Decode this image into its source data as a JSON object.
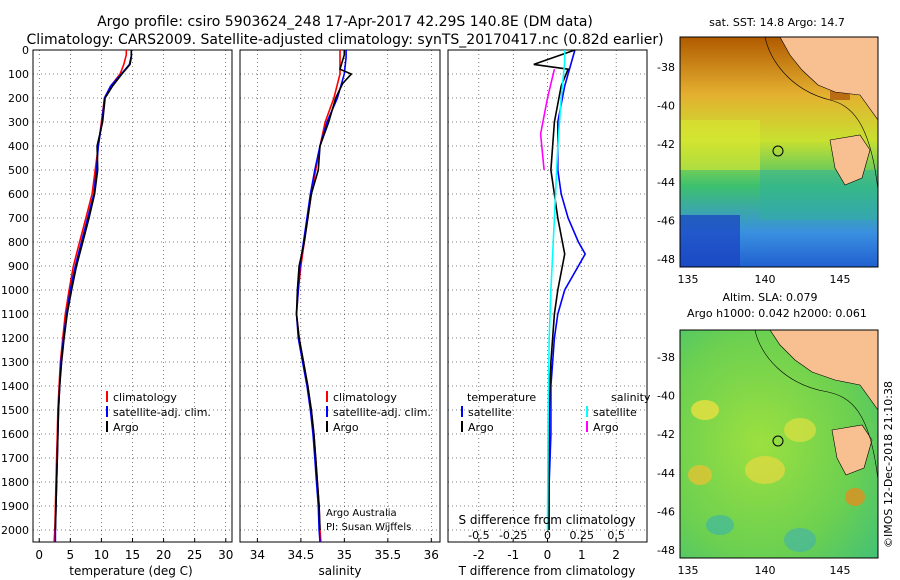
{
  "header": {
    "line1": "Argo profile: csiro 5903624_248 17-Apr-2017 42.29S 140.8E (DM data)",
    "line2": "Climatology: CARS2009. Satellite-adjusted climatology: synTS_20170417.nc (0.82d earlier)"
  },
  "colors": {
    "climatology": "#ff0000",
    "satellite": "#0000ff",
    "argo": "#000000",
    "sat_salinity": "#00ffff",
    "argo_salinity": "#ff00ff",
    "land": "#f8c090"
  },
  "chart_data": [
    {
      "type": "line",
      "name": "temperature",
      "xlabel": "temperature (deg C)",
      "xlim": [
        -1,
        31
      ],
      "ylim": [
        2050,
        0
      ],
      "xticks": [
        0,
        5,
        10,
        15,
        20,
        25,
        30
      ],
      "yticks": [
        0,
        100,
        200,
        300,
        400,
        500,
        600,
        700,
        800,
        900,
        1000,
        1100,
        1200,
        1300,
        1400,
        1500,
        1600,
        1700,
        1800,
        1900,
        2000
      ],
      "legend": {
        "climatology": "climatology",
        "satellite": "satellite-adj. clim.",
        "argo": "Argo"
      },
      "series": [
        {
          "name": "climatology",
          "color": "#ff0000",
          "points": [
            [
              14.0,
              0
            ],
            [
              14.0,
              20
            ],
            [
              13.6,
              60
            ],
            [
              13.0,
              100
            ],
            [
              11.5,
              150
            ],
            [
              10.5,
              200
            ],
            [
              10.0,
              300
            ],
            [
              9.5,
              400
            ],
            [
              9.0,
              500
            ],
            [
              8.5,
              600
            ],
            [
              7.5,
              700
            ],
            [
              6.5,
              800
            ],
            [
              5.5,
              900
            ],
            [
              4.8,
              1000
            ],
            [
              4.2,
              1100
            ],
            [
              3.8,
              1200
            ],
            [
              3.4,
              1300
            ],
            [
              3.2,
              1400
            ],
            [
              3.0,
              1500
            ],
            [
              2.9,
              1600
            ],
            [
              2.8,
              1700
            ],
            [
              2.7,
              1800
            ],
            [
              2.6,
              1900
            ],
            [
              2.5,
              2000
            ],
            [
              2.4,
              2050
            ]
          ]
        },
        {
          "name": "satellite-adj. clim.",
          "color": "#0000ff",
          "points": [
            [
              14.8,
              0
            ],
            [
              14.8,
              25
            ],
            [
              14.5,
              60
            ],
            [
              13.2,
              100
            ],
            [
              11.5,
              150
            ],
            [
              10.5,
              200
            ],
            [
              10.1,
              300
            ],
            [
              9.5,
              400
            ],
            [
              9.2,
              500
            ],
            [
              8.8,
              600
            ],
            [
              7.8,
              700
            ],
            [
              6.8,
              800
            ],
            [
              5.8,
              900
            ],
            [
              5.0,
              1000
            ],
            [
              4.4,
              1100
            ],
            [
              3.9,
              1200
            ],
            [
              3.5,
              1300
            ],
            [
              3.3,
              1400
            ],
            [
              3.1,
              1500
            ],
            [
              3.0,
              1600
            ],
            [
              2.9,
              1700
            ],
            [
              2.8,
              1800
            ],
            [
              2.7,
              1900
            ],
            [
              2.6,
              2000
            ],
            [
              2.6,
              2050
            ]
          ]
        },
        {
          "name": "Argo",
          "color": "#000000",
          "points": [
            [
              14.8,
              0
            ],
            [
              14.8,
              30
            ],
            [
              14.6,
              60
            ],
            [
              13.3,
              100
            ],
            [
              11.8,
              150
            ],
            [
              10.6,
              200
            ],
            [
              10.2,
              300
            ],
            [
              9.3,
              400
            ],
            [
              9.4,
              500
            ],
            [
              8.9,
              600
            ],
            [
              8.0,
              700
            ],
            [
              7.0,
              800
            ],
            [
              6.0,
              900
            ],
            [
              5.2,
              1000
            ],
            [
              4.5,
              1100
            ],
            [
              4.0,
              1200
            ],
            [
              3.6,
              1300
            ],
            [
              3.3,
              1400
            ],
            [
              3.1,
              1500
            ],
            [
              3.0,
              1600
            ],
            [
              2.9,
              1700
            ],
            [
              2.8,
              1800
            ],
            [
              2.7,
              1900
            ],
            [
              2.6,
              2000
            ]
          ]
        }
      ]
    },
    {
      "type": "line",
      "name": "salinity",
      "xlabel": "salinity",
      "xlim": [
        33.8,
        36.1
      ],
      "ylim": [
        2050,
        0
      ],
      "xticks": [
        34,
        34.5,
        35,
        35.5,
        36
      ],
      "legend": {
        "climatology": "climatology",
        "satellite": "satellite-adj. clim.",
        "argo": "Argo"
      },
      "series": [
        {
          "name": "climatology",
          "color": "#ff0000",
          "points": [
            [
              34.95,
              0
            ],
            [
              34.95,
              30
            ],
            [
              34.95,
              100
            ],
            [
              34.88,
              200
            ],
            [
              34.78,
              300
            ],
            [
              34.72,
              400
            ],
            [
              34.67,
              500
            ],
            [
              34.62,
              600
            ],
            [
              34.58,
              700
            ],
            [
              34.54,
              800
            ],
            [
              34.5,
              900
            ],
            [
              34.47,
              1000
            ],
            [
              34.45,
              1100
            ],
            [
              34.48,
              1200
            ],
            [
              34.53,
              1300
            ],
            [
              34.58,
              1400
            ],
            [
              34.62,
              1500
            ],
            [
              34.65,
              1600
            ],
            [
              34.67,
              1700
            ],
            [
              34.69,
              1800
            ],
            [
              34.71,
              1900
            ],
            [
              34.72,
              2000
            ],
            [
              34.73,
              2050
            ]
          ]
        },
        {
          "name": "satellite-adj. clim.",
          "color": "#0000ff",
          "points": [
            [
              35.02,
              0
            ],
            [
              35.02,
              30
            ],
            [
              35.0,
              100
            ],
            [
              34.92,
              200
            ],
            [
              34.8,
              300
            ],
            [
              34.72,
              400
            ],
            [
              34.66,
              500
            ],
            [
              34.61,
              600
            ],
            [
              34.57,
              700
            ],
            [
              34.53,
              800
            ],
            [
              34.49,
              900
            ],
            [
              34.47,
              1000
            ],
            [
              34.45,
              1100
            ],
            [
              34.47,
              1200
            ],
            [
              34.52,
              1300
            ],
            [
              34.57,
              1400
            ],
            [
              34.61,
              1500
            ],
            [
              34.64,
              1600
            ],
            [
              34.66,
              1700
            ],
            [
              34.68,
              1800
            ],
            [
              34.7,
              1900
            ],
            [
              34.71,
              2000
            ],
            [
              34.72,
              2050
            ]
          ]
        },
        {
          "name": "Argo",
          "color": "#000000",
          "points": [
            [
              35.0,
              0
            ],
            [
              35.0,
              20
            ],
            [
              34.95,
              80
            ],
            [
              35.08,
              100
            ],
            [
              34.98,
              140
            ],
            [
              34.9,
              200
            ],
            [
              34.82,
              300
            ],
            [
              34.72,
              400
            ],
            [
              34.7,
              500
            ],
            [
              34.62,
              600
            ],
            [
              34.58,
              700
            ],
            [
              34.54,
              800
            ],
            [
              34.48,
              900
            ],
            [
              34.46,
              1000
            ],
            [
              34.45,
              1100
            ],
            [
              34.48,
              1200
            ],
            [
              34.53,
              1300
            ],
            [
              34.58,
              1400
            ],
            [
              34.62,
              1500
            ],
            [
              34.65,
              1600
            ],
            [
              34.67,
              1700
            ],
            [
              34.69,
              1800
            ],
            [
              34.71,
              1900
            ],
            [
              34.72,
              2000
            ]
          ]
        }
      ],
      "annotations": [
        "Argo Australia",
        "PI: Susan Wijffels"
      ]
    },
    {
      "type": "line",
      "name": "differences",
      "xlabel": "T difference from climatology",
      "xlabel2": "S difference from climatology",
      "xlim": [
        -2.9,
        2.9
      ],
      "ylim": [
        2050,
        0
      ],
      "xticks": [
        -2,
        -1,
        0,
        1,
        2
      ],
      "xticks2": [
        -0.5,
        -0.25,
        0,
        0.25,
        0.5
      ],
      "legend_temperature": {
        "title": "temperature",
        "satellite": "satellite",
        "argo": "Argo"
      },
      "legend_salinity": {
        "title": "salinity",
        "satellite": "satellite",
        "argo": "Argo"
      },
      "series": [
        {
          "name": "temperature satellite",
          "color": "#0000ff",
          "points": [
            [
              0.8,
              0
            ],
            [
              0.7,
              50
            ],
            [
              0.5,
              150
            ],
            [
              0.3,
              300
            ],
            [
              0.3,
              500
            ],
            [
              0.4,
              600
            ],
            [
              0.6,
              700
            ],
            [
              0.9,
              800
            ],
            [
              1.1,
              850
            ],
            [
              0.9,
              900
            ],
            [
              0.5,
              1000
            ],
            [
              0.3,
              1100
            ],
            [
              0.2,
              1200
            ],
            [
              0.1,
              1400
            ],
            [
              0.1,
              1600
            ],
            [
              0.05,
              1800
            ],
            [
              0.05,
              2000
            ]
          ]
        },
        {
          "name": "temperature Argo",
          "color": "#000000",
          "points": [
            [
              0.8,
              0
            ],
            [
              -0.4,
              60
            ],
            [
              0.6,
              80
            ],
            [
              0.4,
              150
            ],
            [
              0.2,
              300
            ],
            [
              0.1,
              500
            ],
            [
              0.3,
              700
            ],
            [
              0.5,
              850
            ],
            [
              0.3,
              1000
            ],
            [
              0.2,
              1100
            ],
            [
              0.1,
              1300
            ],
            [
              0.05,
              1500
            ],
            [
              0.05,
              1700
            ],
            [
              0.02,
              2000
            ]
          ]
        },
        {
          "name": "salinity satellite",
          "color": "#00ffff",
          "points": [
            [
              0.5,
              0
            ],
            [
              0.5,
              50
            ],
            [
              0.4,
              200
            ],
            [
              0.3,
              400
            ],
            [
              0.2,
              700
            ],
            [
              0.1,
              1000
            ],
            [
              0.05,
              1200
            ],
            [
              0.02,
              1500
            ],
            [
              0.0,
              2000
            ]
          ]
        },
        {
          "name": "salinity Argo",
          "color": "#ff00ff",
          "points": [
            [
              0.2,
              80
            ],
            [
              0.0,
              200
            ],
            [
              -0.2,
              350
            ],
            [
              -0.1,
              500
            ]
          ]
        }
      ]
    }
  ],
  "maps": {
    "sst": {
      "title": "sat. SST: 14.8 Argo: 14.7",
      "yticks": [
        "-38",
        "-40",
        "-42",
        "-44",
        "-46",
        "-48"
      ],
      "xticks": [
        "135",
        "140",
        "145"
      ]
    },
    "sla": {
      "title1": "Altim. SLA: 0.079",
      "title2": "Argo h1000: 0.042 h2000: 0.061",
      "yticks": [
        "-38",
        "-40",
        "-42",
        "-44",
        "-46",
        "-48"
      ],
      "xticks": [
        "135",
        "140",
        "145"
      ]
    }
  },
  "footer": {
    "credit": "©IMOS 12-Dec-2018 21:10:38"
  }
}
